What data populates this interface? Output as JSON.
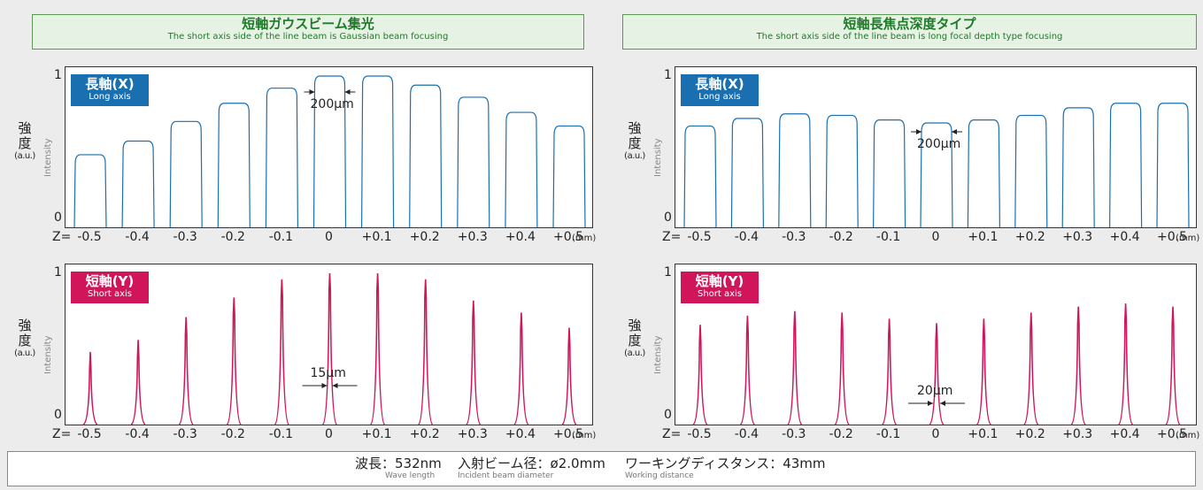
{
  "colors": {
    "long_axis": "#1a6fb0",
    "short_axis": "#d0155a",
    "header_green": "#1f7a2a"
  },
  "panels": {
    "left": {
      "title": "短軸ガウスビーム集光",
      "subtitle": "The short axis side of the line beam is Gaussian beam focusing"
    },
    "right": {
      "title": "短軸長焦点深度タイプ",
      "subtitle": "The short axis side of the line beam is long focal depth type focusing"
    }
  },
  "axis": {
    "y_tick_top": "1",
    "y_tick_bottom": "0",
    "ylabel_jp_1": "強",
    "ylabel_jp_2": "度",
    "ylabel_unit": "(a.u.)",
    "ylabel_en": "Intensity",
    "x_prefix": "Z=",
    "x_unit": "(mm)",
    "x_ticks": [
      "-0.5",
      "-0.4",
      "-0.3",
      "-0.2",
      "-0.1",
      "0",
      "+0.1",
      "+0.2",
      "+0.3",
      "+0.4",
      "+0.5"
    ]
  },
  "badges": {
    "long": {
      "jp": "長軸(X)",
      "en": "Long axis"
    },
    "short": {
      "jp": "短軸(Y)",
      "en": "Short axis"
    }
  },
  "annotations": {
    "left_long": "200μm",
    "right_long": "200μm",
    "left_short": "15μm",
    "right_short": "20μm"
  },
  "chart_data": [
    {
      "id": "left-long",
      "type": "line",
      "title": "長軸(X) Long axis",
      "x": [
        -0.5,
        -0.4,
        -0.3,
        -0.2,
        -0.1,
        0,
        0.1,
        0.2,
        0.3,
        0.4,
        0.5
      ],
      "values": [
        0.48,
        0.57,
        0.7,
        0.82,
        0.92,
        1.0,
        1.0,
        0.94,
        0.86,
        0.76,
        0.67
      ],
      "ylim": [
        0,
        1
      ],
      "profile": "flat-top",
      "color": "#1a6fb0"
    },
    {
      "id": "left-short",
      "type": "line",
      "title": "短軸(Y) Short axis",
      "x": [
        -0.5,
        -0.4,
        -0.3,
        -0.2,
        -0.1,
        0,
        0.1,
        0.2,
        0.3,
        0.4,
        0.5
      ],
      "values": [
        0.48,
        0.56,
        0.71,
        0.84,
        0.96,
        1.0,
        1.0,
        0.96,
        0.82,
        0.74,
        0.64
      ],
      "ylim": [
        0,
        1
      ],
      "profile": "gaussian-peak",
      "color": "#d0155a"
    },
    {
      "id": "right-long",
      "type": "line",
      "title": "長軸(X) Long axis",
      "x": [
        -0.5,
        -0.4,
        -0.3,
        -0.2,
        -0.1,
        0,
        0.1,
        0.2,
        0.3,
        0.4,
        0.5
      ],
      "values": [
        0.67,
        0.72,
        0.75,
        0.74,
        0.71,
        0.69,
        0.71,
        0.74,
        0.79,
        0.82,
        0.82
      ],
      "ylim": [
        0,
        1
      ],
      "profile": "flat-top",
      "color": "#1a6fb0"
    },
    {
      "id": "right-short",
      "type": "line",
      "title": "短軸(Y) Short axis",
      "x": [
        -0.5,
        -0.4,
        -0.3,
        -0.2,
        -0.1,
        0,
        0.1,
        0.2,
        0.3,
        0.4,
        0.5
      ],
      "values": [
        0.66,
        0.72,
        0.75,
        0.74,
        0.7,
        0.67,
        0.7,
        0.74,
        0.78,
        0.8,
        0.78
      ],
      "ylim": [
        0,
        1
      ],
      "profile": "gaussian-peak",
      "color": "#d0155a"
    }
  ],
  "footer": {
    "wavelength": {
      "jp": "波長：532nm",
      "en": "Wave length"
    },
    "beam": {
      "jp": "入射ビーム径：ø2.0mm",
      "en": "Incident beam diameter"
    },
    "distance": {
      "jp": "ワーキングディスタンス：43mm",
      "en": "Working distance"
    }
  }
}
